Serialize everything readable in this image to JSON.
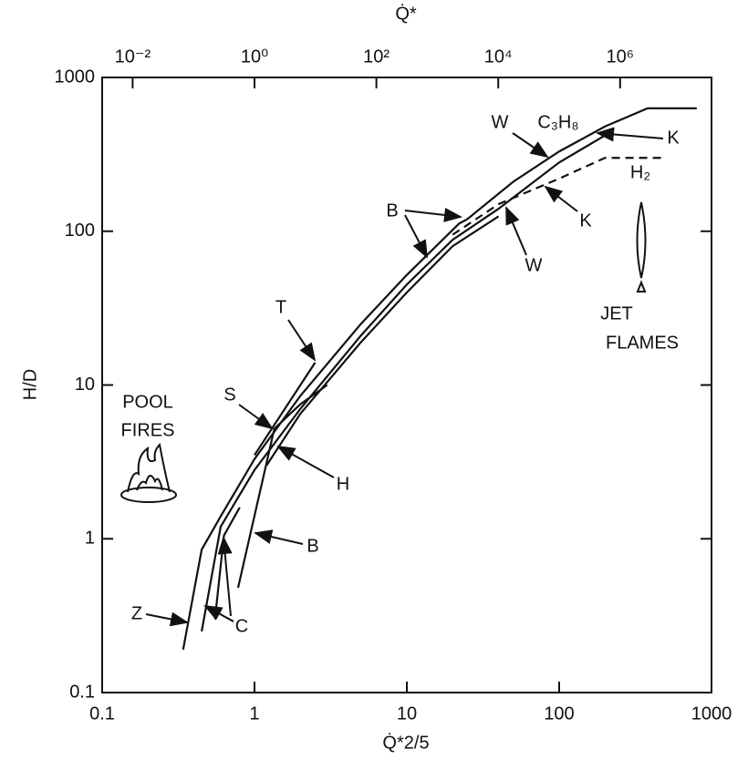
{
  "chart_data": {
    "type": "line",
    "xlabel": "Q̇*2/5",
    "ylabel": "H/D",
    "x2label": "Q̇*",
    "xscale": "log",
    "yscale": "log",
    "xlim": [
      0.1,
      1000
    ],
    "ylim": [
      0.1,
      1000
    ],
    "xticks": [
      0.1,
      1,
      10,
      100,
      1000
    ],
    "yticks": [
      0.1,
      1,
      10,
      100,
      1000
    ],
    "x2lim": [
      0.003162,
      31622777
    ],
    "x2ticks": [
      {
        "value": 0.01,
        "label": "10⁻²"
      },
      {
        "value": 1,
        "label": "10⁰"
      },
      {
        "value": 100,
        "label": "10²"
      },
      {
        "value": 10000,
        "label": "10⁴"
      },
      {
        "value": 1000000,
        "label": "10⁶"
      }
    ],
    "series": [
      {
        "color": "#111111",
        "dash": false,
        "x": [
          0.34,
          0.45,
          0.6,
          1,
          2,
          5,
          10,
          22,
          25,
          50,
          100,
          200,
          380,
          800
        ],
        "values": [
          0.19,
          0.85,
          1.4,
          3.3,
          8.5,
          25,
          52,
          112,
          120,
          210,
          330,
          480,
          630,
          630
        ]
      },
      {
        "color": "#111111",
        "dash": false,
        "x": [
          0.45,
          0.6,
          1,
          2,
          5,
          10,
          20,
          40,
          100,
          200
        ],
        "values": [
          0.25,
          1.2,
          2.8,
          7,
          21,
          45,
          88,
          140,
          280,
          420
        ]
      },
      {
        "color": "#111111",
        "dash": false,
        "x": [
          1.2,
          2,
          5,
          10,
          20,
          40
        ],
        "values": [
          3,
          6.5,
          19,
          40,
          80,
          125
        ]
      },
      {
        "color": "#111111",
        "dash": true,
        "x": [
          20,
          40,
          100,
          200,
          500
        ],
        "values": [
          95,
          150,
          220,
          300,
          300
        ]
      },
      {
        "color": "#111111",
        "dash": false,
        "x": [
          0.78,
          1.35,
          2,
          3
        ],
        "values": [
          0.48,
          5.2,
          7.5,
          10
        ]
      },
      {
        "color": "#111111",
        "dash": false,
        "x": [
          1,
          2.5
        ],
        "values": [
          3.5,
          14
        ]
      },
      {
        "color": "#111111",
        "dash": false,
        "x": [
          0.55,
          0.63,
          0.8
        ],
        "values": [
          0.3,
          1.05,
          1.6
        ]
      }
    ],
    "annotations": [
      "C₃H₈",
      "W",
      "K",
      "H₂",
      "B",
      "K",
      "W",
      "T",
      "S",
      "H",
      "B",
      "Z",
      "C",
      "POOL",
      "FIRES",
      "JET",
      "FLAMES"
    ]
  }
}
